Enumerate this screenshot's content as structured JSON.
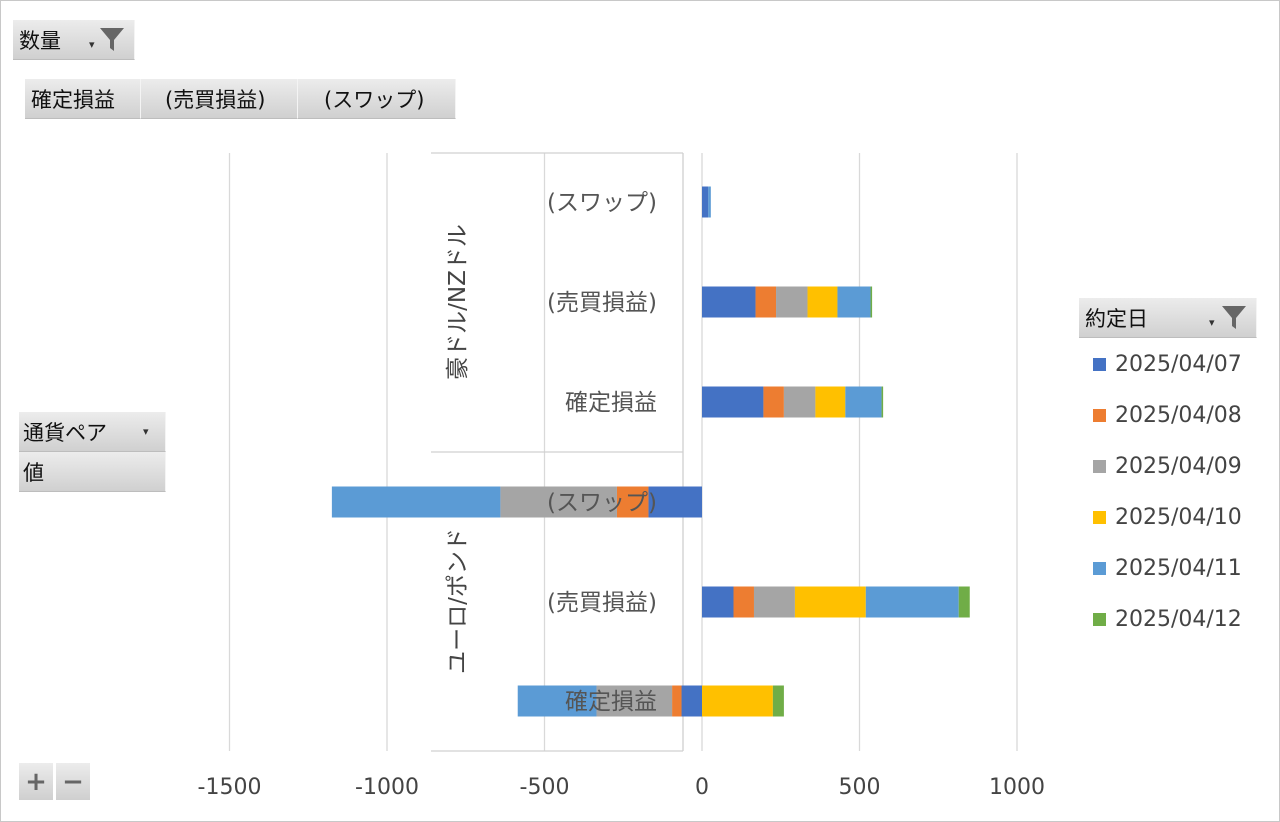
{
  "fields": {
    "filter_field": "数量",
    "column_fields": [
      "確定損益",
      "(売買損益)",
      "(スワップ)"
    ],
    "row_field": "通貨ペア",
    "values_field": "値",
    "legend_field": "約定日",
    "zoom_in": "+",
    "zoom_out": "−"
  },
  "colors": {
    "2025/04/07": "#4472c4",
    "2025/04/08": "#ed7d31",
    "2025/04/09": "#a5a5a5",
    "2025/04/10": "#ffc000",
    "2025/04/11": "#5b9bd5",
    "2025/04/12": "#70ad47"
  },
  "chart_data": {
    "type": "bar",
    "orientation": "horizontal",
    "stacked": true,
    "xlim": [
      -1500,
      1000
    ],
    "x_ticks": [
      -1500,
      -1000,
      -500,
      0,
      500,
      1000
    ],
    "grid": true,
    "legend_placement": "right",
    "groups": [
      {
        "name": "豪ドル/NZドル",
        "categories": [
          "(スワップ)",
          "(売買損益)",
          "確定損益"
        ]
      },
      {
        "name": "ユーロ/ポンド",
        "categories": [
          "(スワップ)",
          "(売買損益)",
          "確定損益"
        ]
      }
    ],
    "series": [
      {
        "name": "2025/04/07",
        "values": [
          20,
          170,
          195,
          -170,
          100,
          -65
        ]
      },
      {
        "name": "2025/04/08",
        "values": [
          0,
          65,
          65,
          -100,
          65,
          -30
        ]
      },
      {
        "name": "2025/04/09",
        "values": [
          0,
          100,
          100,
          -370,
          130,
          -240
        ]
      },
      {
        "name": "2025/04/10",
        "values": [
          0,
          95,
          95,
          0,
          225,
          225
        ]
      },
      {
        "name": "2025/04/11",
        "values": [
          8,
          105,
          115,
          -535,
          295,
          -250
        ]
      },
      {
        "name": "2025/04/12",
        "values": [
          0,
          5,
          5,
          0,
          35,
          35
        ]
      }
    ]
  }
}
